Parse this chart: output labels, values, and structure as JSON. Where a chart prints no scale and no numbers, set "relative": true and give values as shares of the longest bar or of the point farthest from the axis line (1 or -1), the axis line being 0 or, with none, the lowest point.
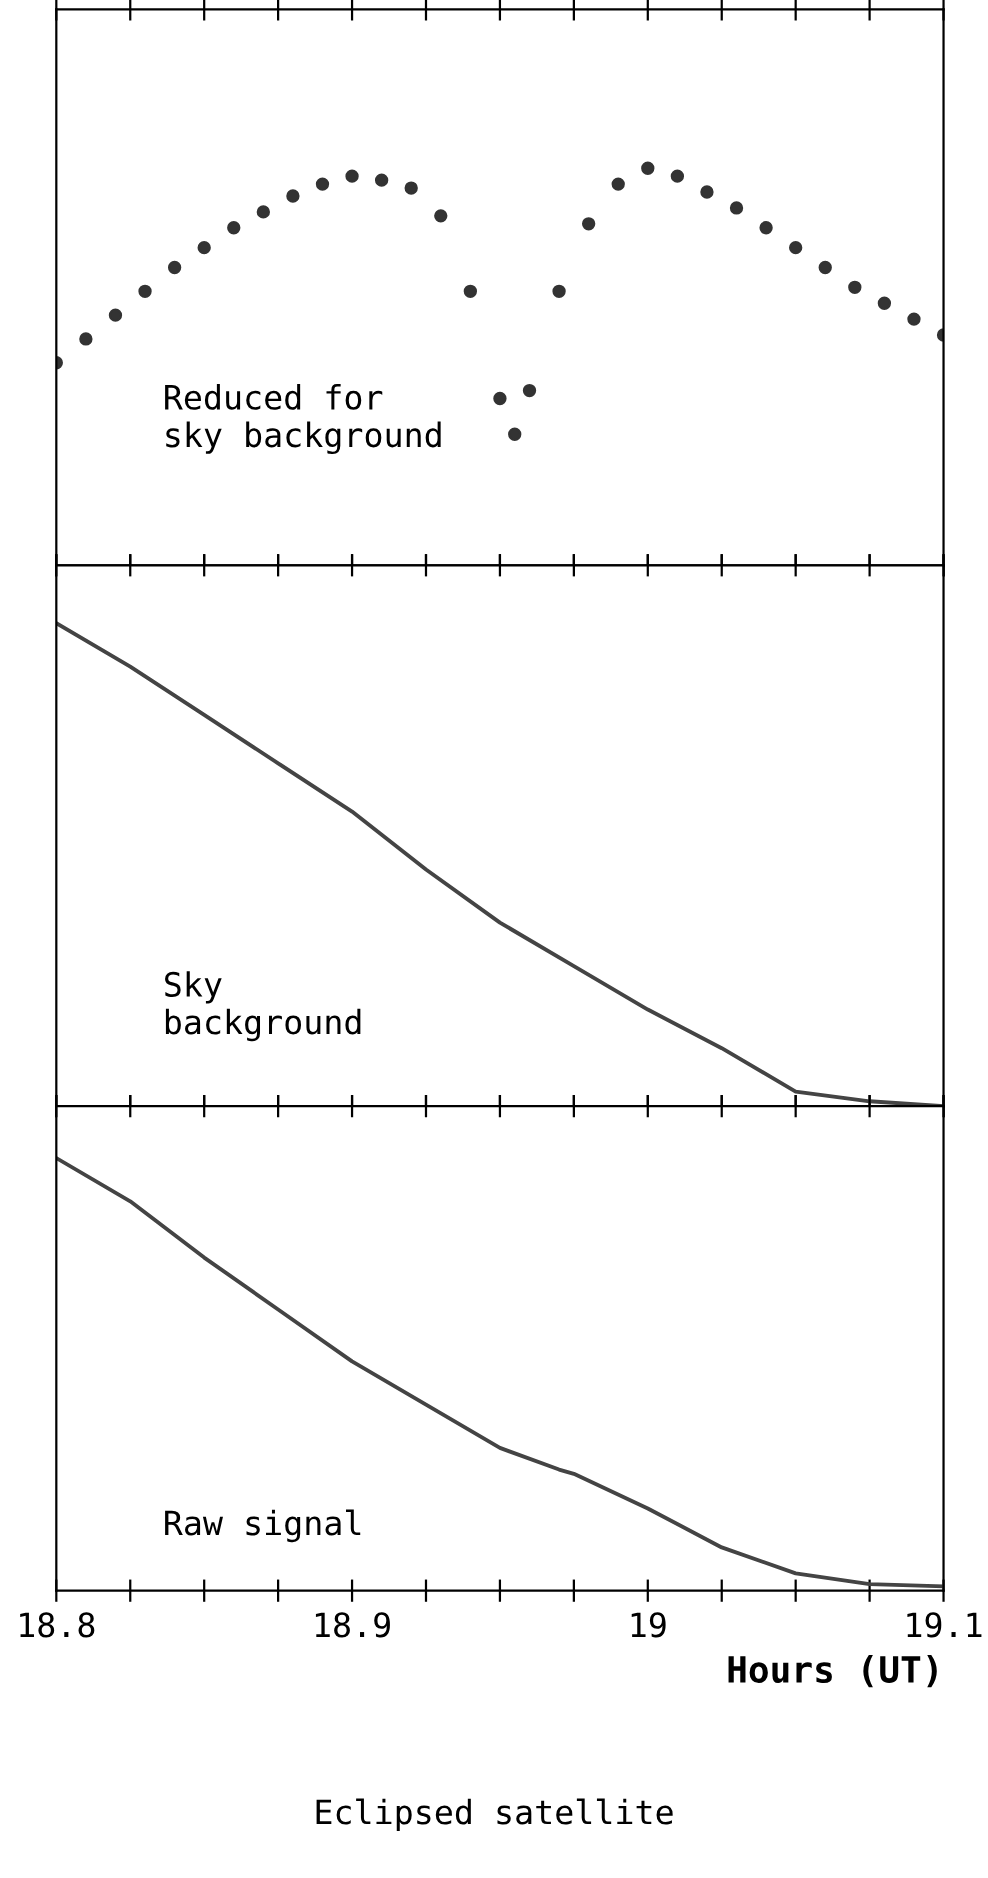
{
  "chart_data": [
    {
      "type": "scatter",
      "relative": true,
      "tick_labels": false,
      "marker": "circle",
      "xlim": [
        18.8,
        19.1
      ],
      "xticks": [
        {
          "value": 18.8,
          "label": null
        },
        {
          "value": 18.825,
          "label": null
        },
        {
          "value": 18.85,
          "label": null
        },
        {
          "value": 18.875,
          "label": null
        },
        {
          "value": 18.9,
          "label": null
        },
        {
          "value": 18.925,
          "label": null
        },
        {
          "value": 18.95,
          "label": null
        },
        {
          "value": 18.975,
          "label": null
        },
        {
          "value": 19.0,
          "label": null
        },
        {
          "value": 19.025,
          "label": null
        },
        {
          "value": 19.05,
          "label": null
        },
        {
          "value": 19.075,
          "label": null
        },
        {
          "value": 19.1,
          "label": null
        }
      ],
      "x": [
        18.8,
        18.81,
        18.82,
        18.83,
        18.84,
        18.85,
        18.86,
        18.87,
        18.88,
        18.89,
        18.9,
        18.91,
        18.92,
        18.93,
        18.94,
        18.95,
        18.955,
        18.96,
        18.97,
        18.98,
        18.99,
        19.0,
        19.01,
        19.02,
        19.03,
        19.04,
        19.05,
        19.06,
        19.07,
        19.08,
        19.09,
        19.1
      ],
      "series": [
        {
          "color": "#333333",
          "values": [
            0.51,
            0.57,
            0.63,
            0.69,
            0.75,
            0.8,
            0.85,
            0.89,
            0.93,
            0.96,
            0.98,
            0.97,
            0.95,
            0.88,
            0.69,
            0.42,
            0.33,
            0.44,
            0.69,
            0.86,
            0.96,
            1.0,
            0.98,
            0.94,
            0.9,
            0.85,
            0.8,
            0.75,
            0.7,
            0.66,
            0.62,
            0.58
          ]
        }
      ],
      "annotations": [
        "Reduced for\nsky background"
      ]
    },
    {
      "type": "line",
      "relative": true,
      "tick_labels": false,
      "xlim": [
        18.8,
        19.1
      ],
      "xticks": [
        {
          "value": 18.8,
          "label": null
        },
        {
          "value": 18.825,
          "label": null
        },
        {
          "value": 18.85,
          "label": null
        },
        {
          "value": 18.875,
          "label": null
        },
        {
          "value": 18.9,
          "label": null
        },
        {
          "value": 18.925,
          "label": null
        },
        {
          "value": 18.95,
          "label": null
        },
        {
          "value": 18.975,
          "label": null
        },
        {
          "value": 19.0,
          "label": null
        },
        {
          "value": 19.025,
          "label": null
        },
        {
          "value": 19.05,
          "label": null
        },
        {
          "value": 19.075,
          "label": null
        },
        {
          "value": 19.1,
          "label": null
        }
      ],
      "x": [
        18.8,
        18.825,
        18.85,
        18.875,
        18.9,
        18.925,
        18.95,
        18.975,
        19.0,
        19.025,
        19.05,
        19.075,
        19.1
      ],
      "series": [
        {
          "color": "#444444",
          "values": [
            1.0,
            0.91,
            0.81,
            0.71,
            0.61,
            0.49,
            0.38,
            0.29,
            0.2,
            0.12,
            0.03,
            0.01,
            0.0
          ]
        }
      ],
      "annotations": [
        "Sky\nbackground"
      ]
    },
    {
      "type": "line",
      "relative": true,
      "tick_labels": "x",
      "xlim": [
        18.8,
        19.1
      ],
      "xlabel": "Hours (UT)",
      "xticks": [
        18.8,
        {
          "value": 18.825,
          "label": null
        },
        {
          "value": 18.85,
          "label": null
        },
        {
          "value": 18.875,
          "label": null
        },
        18.9,
        {
          "value": 18.925,
          "label": null
        },
        {
          "value": 18.95,
          "label": null
        },
        {
          "value": 18.975,
          "label": null
        },
        19,
        {
          "value": 19.025,
          "label": null
        },
        {
          "value": 19.05,
          "label": null
        },
        {
          "value": 19.075,
          "label": null
        },
        19.1
      ],
      "x": [
        18.8,
        18.825,
        18.85,
        18.875,
        18.9,
        18.925,
        18.95,
        18.97,
        18.975,
        19.0,
        19.025,
        19.05,
        19.075,
        19.1
      ],
      "series": [
        {
          "color": "#444444",
          "values": [
            1.0,
            0.9,
            0.77,
            0.65,
            0.53,
            0.43,
            0.33,
            0.28,
            0.27,
            0.19,
            0.1,
            0.04,
            0.015,
            0.01
          ]
        }
      ],
      "annotations": [
        "Raw signal",
        "Eclipsed satellite"
      ]
    }
  ]
}
